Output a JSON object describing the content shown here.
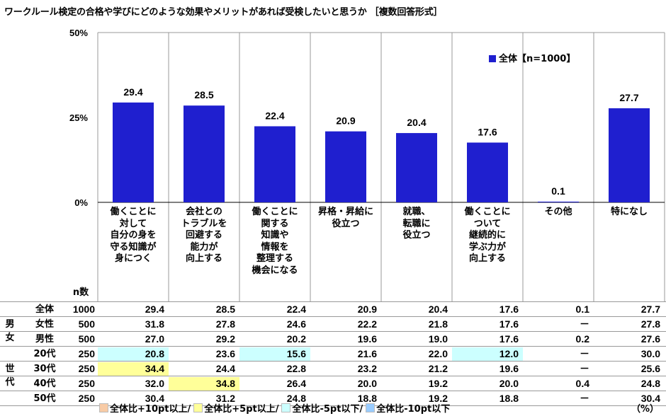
{
  "title": "ワークルール検定の合格や学びにどのような効果やメリットがあれば受検したいと思うか ［複数回答形式］",
  "n_header": "n数",
  "legend_label": "全体【n=1000】",
  "unit_label": "（%）",
  "legend_bottom": {
    "items": [
      {
        "label": "全体比+10pt以上",
        "color": "#f8cba6"
      },
      {
        "label": "全体比+5pt以上",
        "color": "#ffff99"
      },
      {
        "label": "全体比-5pt以下",
        "color": "#ccffff"
      },
      {
        "label": "全体比-10pt以下",
        "color": "#99ccff"
      }
    ],
    "separator": "/"
  },
  "colors": {
    "bar": "#1f1fcf",
    "grid": "#999999",
    "yellow": "#ffff99",
    "cyan": "#ccffff"
  },
  "chart_data": {
    "type": "bar",
    "yticks": [
      "0%",
      "25%",
      "50%"
    ],
    "ylim": [
      0,
      50
    ],
    "categories": [
      "働くことに\n対して\n自分の身を\n守る知識が\n身につく",
      "会社との\nトラブルを\n回避する\n能力が\n向上する",
      "働くことに\n関する\n知識や\n情報を\n整理する\n機会になる",
      "昇格・昇給に\n役立つ",
      "就職、\n転職に\n役立つ",
      "働くことに\nついて\n継続的に\n学ぶ力が\n向上する",
      "その他",
      "特になし"
    ],
    "series": [
      {
        "name": "全体【n=1000】",
        "values": [
          29.4,
          28.5,
          22.4,
          20.9,
          20.4,
          17.6,
          0.1,
          27.7
        ]
      }
    ],
    "value_labels": [
      "29.4",
      "28.5",
      "22.4",
      "20.9",
      "20.4",
      "17.6",
      "0.1",
      "27.7"
    ]
  },
  "groups": [
    {
      "label": "男\n女",
      "rows": [
        1,
        2
      ]
    },
    {
      "label": "世\n代",
      "rows": [
        3,
        4,
        5,
        6
      ]
    }
  ],
  "table": [
    {
      "label": "全体",
      "n": "1000",
      "values": [
        "29.4",
        "28.5",
        "22.4",
        "20.9",
        "20.4",
        "17.6",
        "0.1",
        "27.7"
      ],
      "hl": [
        "",
        "",
        "",
        "",
        "",
        "",
        "",
        ""
      ]
    },
    {
      "label": "女性",
      "n": "500",
      "values": [
        "31.8",
        "27.8",
        "24.6",
        "22.2",
        "21.8",
        "17.6",
        "－",
        "27.8"
      ],
      "hl": [
        "",
        "",
        "",
        "",
        "",
        "",
        "",
        ""
      ]
    },
    {
      "label": "男性",
      "n": "500",
      "values": [
        "27.0",
        "29.2",
        "20.2",
        "19.6",
        "19.0",
        "17.6",
        "0.2",
        "27.6"
      ],
      "hl": [
        "",
        "",
        "",
        "",
        "",
        "",
        "",
        ""
      ]
    },
    {
      "label": "20代",
      "n": "250",
      "values": [
        "20.8",
        "23.6",
        "15.6",
        "21.6",
        "22.0",
        "12.0",
        "－",
        "30.0"
      ],
      "hl": [
        "cyan",
        "",
        "cyan",
        "",
        "",
        "cyan",
        "",
        ""
      ]
    },
    {
      "label": "30代",
      "n": "250",
      "values": [
        "34.4",
        "24.4",
        "22.8",
        "23.2",
        "21.2",
        "19.6",
        "－",
        "25.6"
      ],
      "hl": [
        "yellow",
        "",
        "",
        "",
        "",
        "",
        "",
        ""
      ]
    },
    {
      "label": "40代",
      "n": "250",
      "values": [
        "32.0",
        "34.8",
        "26.4",
        "20.0",
        "19.2",
        "20.0",
        "0.4",
        "24.8"
      ],
      "hl": [
        "",
        "yellow",
        "",
        "",
        "",
        "",
        "",
        ""
      ]
    },
    {
      "label": "50代",
      "n": "250",
      "values": [
        "30.4",
        "31.2",
        "24.8",
        "18.8",
        "19.2",
        "18.8",
        "－",
        "30.4"
      ],
      "hl": [
        "",
        "",
        "",
        "",
        "",
        "",
        "",
        ""
      ]
    }
  ]
}
